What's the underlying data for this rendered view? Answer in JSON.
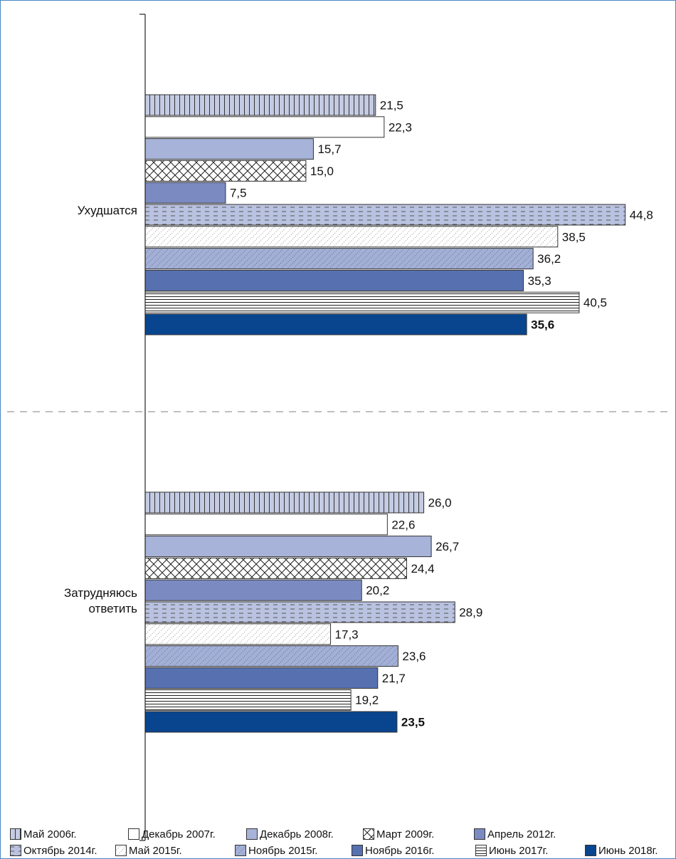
{
  "chart_data": {
    "type": "bar",
    "orientation": "horizontal",
    "xlim": [
      0,
      50
    ],
    "grid": false,
    "legend_position": "bottom",
    "categories": [
      "Ухудшатся",
      "Затрудняюсь\nответить"
    ],
    "series": [
      {
        "name": "Май 2006г.",
        "values": [
          21.5,
          26.0
        ],
        "labels": [
          "21,5",
          "26,0"
        ],
        "pattern": "vlines",
        "color": "#c4cbe3",
        "bold": false
      },
      {
        "name": "Декабрь 2007г.",
        "values": [
          22.3,
          22.6
        ],
        "labels": [
          "22,3",
          "22,6"
        ],
        "pattern": "plain",
        "color": "#ffffff",
        "bold": false
      },
      {
        "name": "Декабрь 2008г.",
        "values": [
          15.7,
          26.7
        ],
        "labels": [
          "15,7",
          "26,7"
        ],
        "pattern": "plain",
        "color": "#a7b3d8",
        "bold": false
      },
      {
        "name": "Март 2009г.",
        "values": [
          15.0,
          24.4
        ],
        "labels": [
          "15,0",
          "24,4"
        ],
        "pattern": "cross",
        "color": "#ffffff",
        "bold": false
      },
      {
        "name": "Апрель 2012г.",
        "values": [
          7.5,
          20.2
        ],
        "labels": [
          "7,5",
          "20,2"
        ],
        "pattern": "plain",
        "color": "#7b8bc2",
        "bold": false
      },
      {
        "name": "Октябрь 2014г.",
        "values": [
          44.8,
          28.9
        ],
        "labels": [
          "44,8",
          "28,9"
        ],
        "pattern": "dashes",
        "color": "#b9c2e0",
        "bold": false
      },
      {
        "name": "Май 2015г.",
        "values": [
          38.5,
          17.3
        ],
        "labels": [
          "38,5",
          "17,3"
        ],
        "pattern": "diagdots",
        "color": "#ffffff",
        "bold": false
      },
      {
        "name": "Ноябрь 2015г.",
        "values": [
          36.2,
          23.6
        ],
        "labels": [
          "36,2",
          "23,6"
        ],
        "pattern": "diagdots",
        "color": "#a2afd6",
        "bold": false
      },
      {
        "name": "Ноябрь 2016г.",
        "values": [
          35.3,
          21.7
        ],
        "labels": [
          "35,3",
          "21,7"
        ],
        "pattern": "plain",
        "color": "#5670b0",
        "bold": false
      },
      {
        "name": "Июнь 2017г.",
        "values": [
          40.5,
          19.2
        ],
        "labels": [
          "40,5",
          "19,2"
        ],
        "pattern": "hlines",
        "color": "#ffffff",
        "bold": false
      },
      {
        "name": "Июнь 2018г.",
        "values": [
          35.6,
          23.5
        ],
        "labels": [
          "35,6",
          "23,5"
        ],
        "pattern": "plain",
        "color": "#08458e",
        "bold": true
      }
    ]
  }
}
